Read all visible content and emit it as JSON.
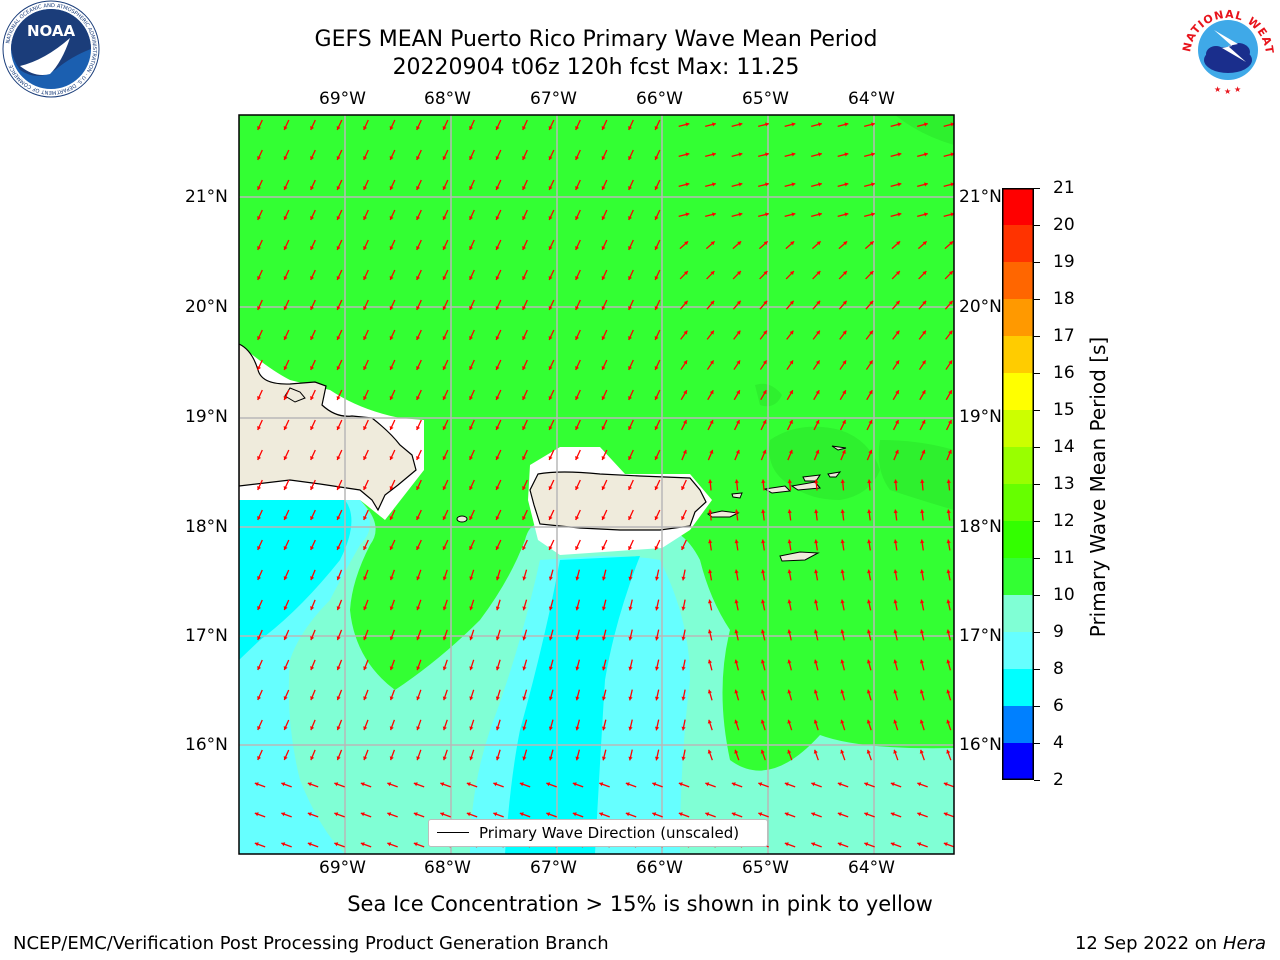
{
  "header": {
    "title_line1": "GEFS MEAN Puerto Rico Primary Wave Mean Period",
    "title_line2": "20220904 t06z 120h fcst   Max: 11.25"
  },
  "logos": {
    "noaa_text": "NOAA",
    "noaa_ring_text": "NATIONAL OCEANIC AND ATMOSPHERIC ADMINISTRATION · U.S. DEPARTMENT OF COMMERCE",
    "nws_ring_text": "NATIONAL WEATHER SERVICE"
  },
  "map": {
    "lon_labels": [
      "69°W",
      "68°W",
      "67°W",
      "66°W",
      "65°W",
      "64°W"
    ],
    "lat_labels": [
      "21°N",
      "20°N",
      "19°N",
      "18°N",
      "17°N",
      "16°N"
    ],
    "field": "Primary Wave Mean Period",
    "vector_field": "Primary Wave Direction",
    "arrow_color": "#ff0000",
    "land_color": "#efebdc",
    "legend_label": "Primary Wave Direction (unscaled)"
  },
  "colorbar": {
    "label": "Primary Wave Mean Period [s]",
    "ticks": [
      "21",
      "20",
      "19",
      "18",
      "17",
      "16",
      "15",
      "14",
      "13",
      "12",
      "11",
      "10",
      "9",
      "8",
      "6",
      "4",
      "2"
    ],
    "colors": [
      "#ff0000",
      "#ff3300",
      "#ff6600",
      "#ff9900",
      "#ffcc00",
      "#ffff00",
      "#ccff00",
      "#99ff00",
      "#66ff00",
      "#33ff00",
      "#33ff33",
      "#80ffd5",
      "#66ffff",
      "#00ffff",
      "#0080ff",
      "#0000ff"
    ]
  },
  "footer": {
    "note": "Sea Ice Concentration > 15% is shown in pink to yellow",
    "branch": "NCEP/EMC/Verification Post Processing Product Generation Branch",
    "date": "12 Sep 2022 on",
    "machine": "Hera"
  }
}
